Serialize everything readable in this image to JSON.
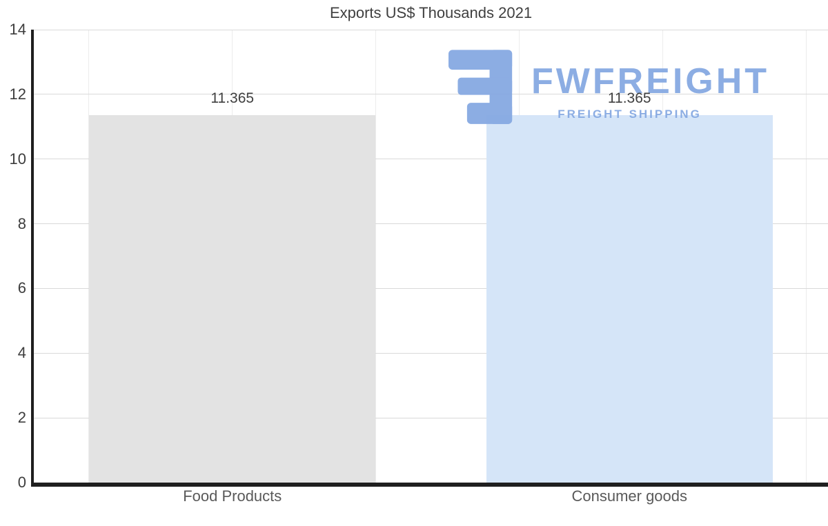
{
  "chart_data": {
    "type": "bar",
    "title": "Exports US$ Thousands 2021",
    "categories": [
      "Food Products",
      "Consumer goods"
    ],
    "values": [
      11.365,
      11.365
    ],
    "value_labels": [
      "11.365",
      "11.365"
    ],
    "xlabel": "",
    "ylabel": "",
    "ylim": [
      0,
      14
    ],
    "yticks": [
      0,
      2,
      4,
      6,
      8,
      10,
      12,
      14
    ],
    "ytick_labels": [
      "0",
      "2",
      "4",
      "6",
      "8",
      "10",
      "12",
      "14"
    ],
    "grid": true,
    "legend": "none",
    "bar_colors": [
      "#e3e3e3",
      "#d5e5f8"
    ]
  },
  "watermark": {
    "brand": "FWFREIGHT",
    "tagline": "FREIGHT SHIPPING",
    "color": "#86a9e2"
  },
  "colors": {
    "background": "#ffffff",
    "axis": "#1f1f1f",
    "gridline": "#d9d9d9",
    "title_text": "#3f3f3f",
    "tick_text": "#3d3d3d",
    "category_text": "#595959",
    "value_label_text": "#3f3f3f"
  }
}
